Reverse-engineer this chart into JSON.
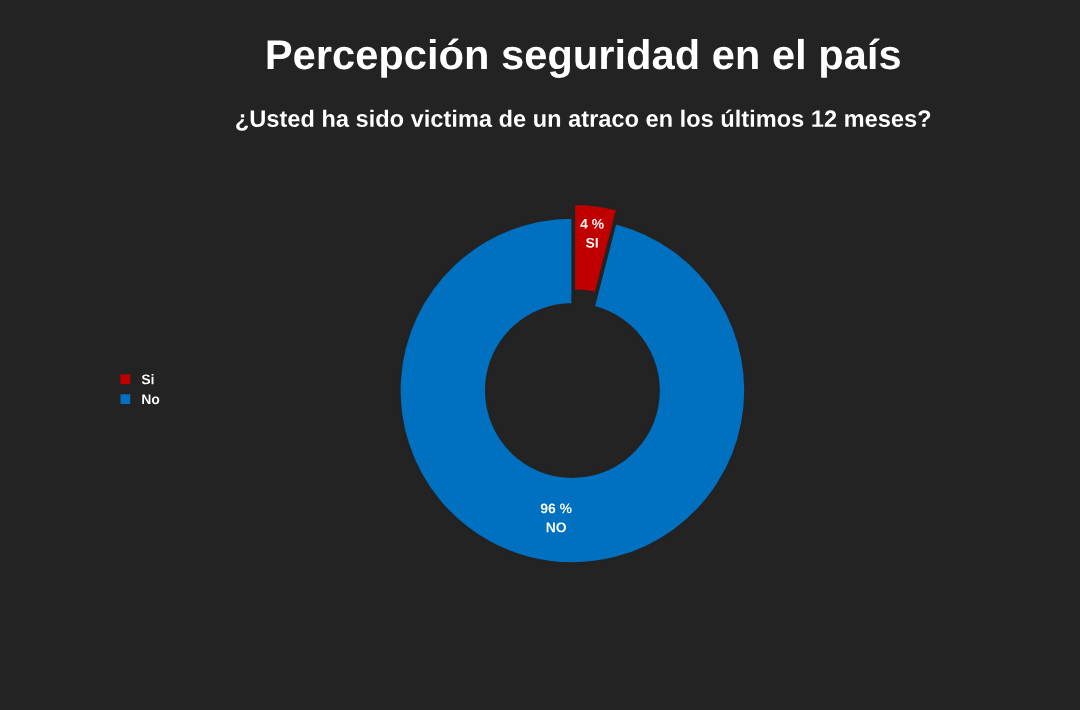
{
  "chart_data": {
    "type": "donut",
    "title": "Percepción seguridad en el país",
    "subtitle": "¿Usted ha sido victima de un atraco en los últimos 12 meses?",
    "categories": [
      "Si",
      "No"
    ],
    "values": [
      4,
      96
    ],
    "colors": [
      "#c00000",
      "#0070c0"
    ],
    "value_labels": [
      "4 %\nSI",
      "96 %\nNO"
    ],
    "legend": "left"
  }
}
